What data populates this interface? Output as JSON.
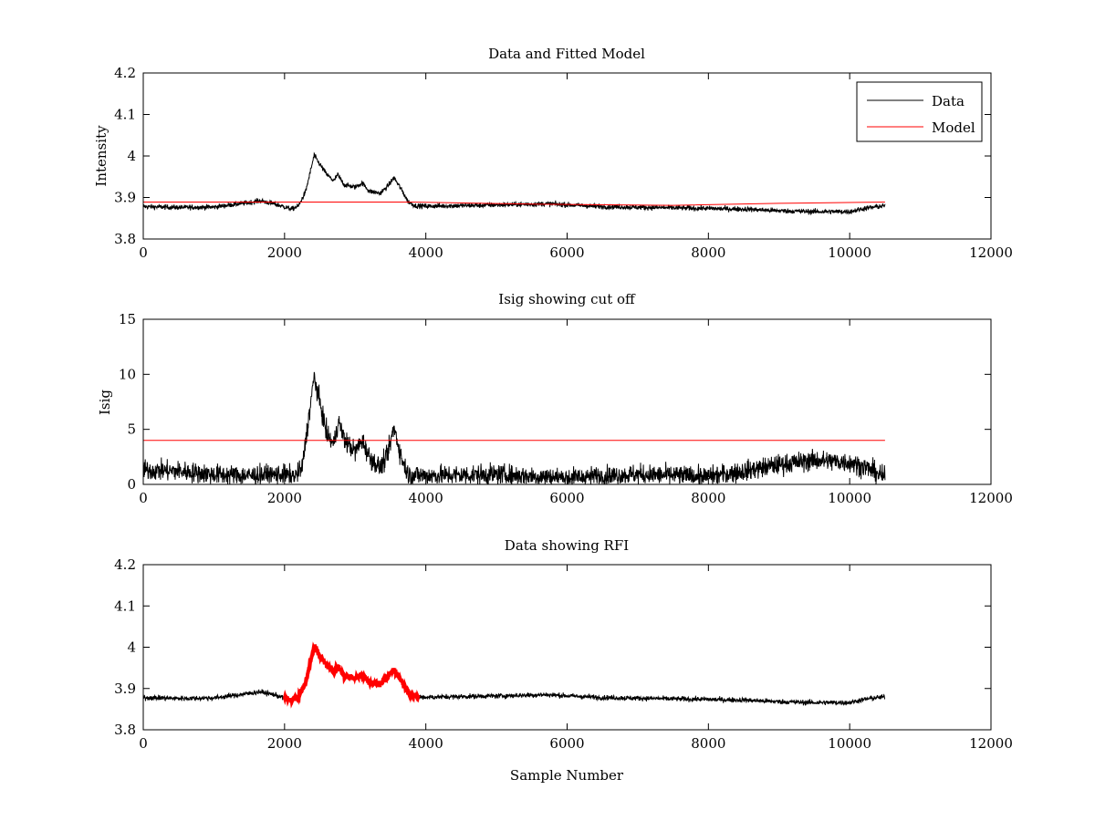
{
  "chart_data": [
    {
      "type": "line",
      "title": "Data and Fitted Model",
      "xlabel": "",
      "ylabel": "Intensity",
      "xlim": [
        0,
        12000
      ],
      "ylim": [
        3.8,
        4.2
      ],
      "xticks": [
        "0",
        "2000",
        "4000",
        "6000",
        "8000",
        "10000",
        "12000"
      ],
      "yticks": [
        "3.8",
        "3.9",
        "4",
        "4.1",
        "4.2"
      ],
      "legend": {
        "position": "top-right",
        "entries": [
          "Data",
          "Model"
        ]
      },
      "series": [
        {
          "name": "Data",
          "color": "#000000",
          "noise": 0.006,
          "points": [
            [
              0,
              3.878
            ],
            [
              500,
              3.876
            ],
            [
              1000,
              3.877
            ],
            [
              1500,
              3.888
            ],
            [
              1650,
              3.892
            ],
            [
              1850,
              3.885
            ],
            [
              2100,
              3.872
            ],
            [
              2200,
              3.88
            ],
            [
              2300,
              3.915
            ],
            [
              2420,
              4.002
            ],
            [
              2480,
              3.985
            ],
            [
              2600,
              3.955
            ],
            [
              2700,
              3.94
            ],
            [
              2750,
              3.955
            ],
            [
              2850,
              3.93
            ],
            [
              3000,
              3.925
            ],
            [
              3100,
              3.935
            ],
            [
              3200,
              3.915
            ],
            [
              3350,
              3.91
            ],
            [
              3450,
              3.925
            ],
            [
              3550,
              3.948
            ],
            [
              3650,
              3.92
            ],
            [
              3750,
              3.89
            ],
            [
              3850,
              3.88
            ],
            [
              4000,
              3.879
            ],
            [
              5000,
              3.882
            ],
            [
              5700,
              3.885
            ],
            [
              6500,
              3.878
            ],
            [
              7500,
              3.875
            ],
            [
              8500,
              3.872
            ],
            [
              9000,
              3.868
            ],
            [
              9500,
              3.866
            ],
            [
              10000,
              3.866
            ],
            [
              10250,
              3.875
            ],
            [
              10500,
              3.88
            ]
          ]
        },
        {
          "name": "Model",
          "color": "#ff0000",
          "noise": 0,
          "points": [
            [
              0,
              3.889
            ],
            [
              3800,
              3.889
            ],
            [
              5500,
              3.884
            ],
            [
              7500,
              3.881
            ],
            [
              9000,
              3.886
            ],
            [
              10500,
              3.889
            ]
          ]
        }
      ]
    },
    {
      "type": "line",
      "title": "Isig showing cut off",
      "xlabel": "",
      "ylabel": "Isig",
      "xlim": [
        0,
        12000
      ],
      "ylim": [
        0,
        15
      ],
      "xticks": [
        "0",
        "2000",
        "4000",
        "6000",
        "8000",
        "10000",
        "12000"
      ],
      "yticks": [
        "0",
        "5",
        "10",
        "15"
      ],
      "series": [
        {
          "color": "#000000",
          "noise": 0.9,
          "abs": true,
          "points": [
            [
              0,
              1.3
            ],
            [
              500,
              1.2
            ],
            [
              1000,
              0.9
            ],
            [
              1500,
              0.8
            ],
            [
              2000,
              0.9
            ],
            [
              2150,
              0.7
            ],
            [
              2250,
              1.5
            ],
            [
              2320,
              5.0
            ],
            [
              2420,
              9.8
            ],
            [
              2480,
              8.0
            ],
            [
              2600,
              4.5
            ],
            [
              2700,
              3.6
            ],
            [
              2760,
              5.8
            ],
            [
              2850,
              4.0
            ],
            [
              3000,
              3.0
            ],
            [
              3100,
              4.0
            ],
            [
              3200,
              2.5
            ],
            [
              3350,
              1.5
            ],
            [
              3450,
              2.5
            ],
            [
              3550,
              5.2
            ],
            [
              3650,
              2.5
            ],
            [
              3750,
              0.9
            ],
            [
              4000,
              0.8
            ],
            [
              5000,
              0.9
            ],
            [
              6000,
              0.6
            ],
            [
              7000,
              0.9
            ],
            [
              8000,
              0.7
            ],
            [
              8500,
              1.2
            ],
            [
              9000,
              1.8
            ],
            [
              9500,
              2.2
            ],
            [
              10000,
              2.0
            ],
            [
              10250,
              1.5
            ],
            [
              10500,
              0.6
            ]
          ]
        },
        {
          "color": "#ff0000",
          "noise": 0,
          "points": [
            [
              0,
              4
            ],
            [
              10500,
              4
            ]
          ]
        }
      ]
    },
    {
      "type": "line",
      "title": "Data showing RFI",
      "xlabel": "Sample Number",
      "ylabel": "",
      "xlim": [
        0,
        12000
      ],
      "ylim": [
        3.8,
        4.2
      ],
      "xticks": [
        "0",
        "2000",
        "4000",
        "6000",
        "8000",
        "10000",
        "12000"
      ],
      "yticks": [
        "3.8",
        "3.9",
        "4",
        "4.1",
        "4.2"
      ],
      "rfi_range": [
        2000,
        3900
      ],
      "series": [
        {
          "color": "#000000",
          "noise": 0.006,
          "points": [
            [
              0,
              3.878
            ],
            [
              500,
              3.876
            ],
            [
              1000,
              3.877
            ],
            [
              1500,
              3.888
            ],
            [
              1650,
              3.892
            ],
            [
              1850,
              3.885
            ],
            [
              2100,
              3.872
            ],
            [
              2200,
              3.88
            ],
            [
              2300,
              3.915
            ],
            [
              2420,
              4.002
            ],
            [
              2480,
              3.985
            ],
            [
              2600,
              3.955
            ],
            [
              2700,
              3.94
            ],
            [
              2750,
              3.955
            ],
            [
              2850,
              3.93
            ],
            [
              3000,
              3.925
            ],
            [
              3100,
              3.935
            ],
            [
              3200,
              3.915
            ],
            [
              3350,
              3.91
            ],
            [
              3450,
              3.925
            ],
            [
              3550,
              3.948
            ],
            [
              3650,
              3.92
            ],
            [
              3750,
              3.89
            ],
            [
              3850,
              3.88
            ],
            [
              4000,
              3.879
            ],
            [
              5000,
              3.882
            ],
            [
              5700,
              3.885
            ],
            [
              6500,
              3.878
            ],
            [
              7500,
              3.875
            ],
            [
              8500,
              3.872
            ],
            [
              9000,
              3.868
            ],
            [
              9500,
              3.866
            ],
            [
              10000,
              3.866
            ],
            [
              10250,
              3.875
            ],
            [
              10500,
              3.88
            ]
          ]
        }
      ]
    }
  ]
}
